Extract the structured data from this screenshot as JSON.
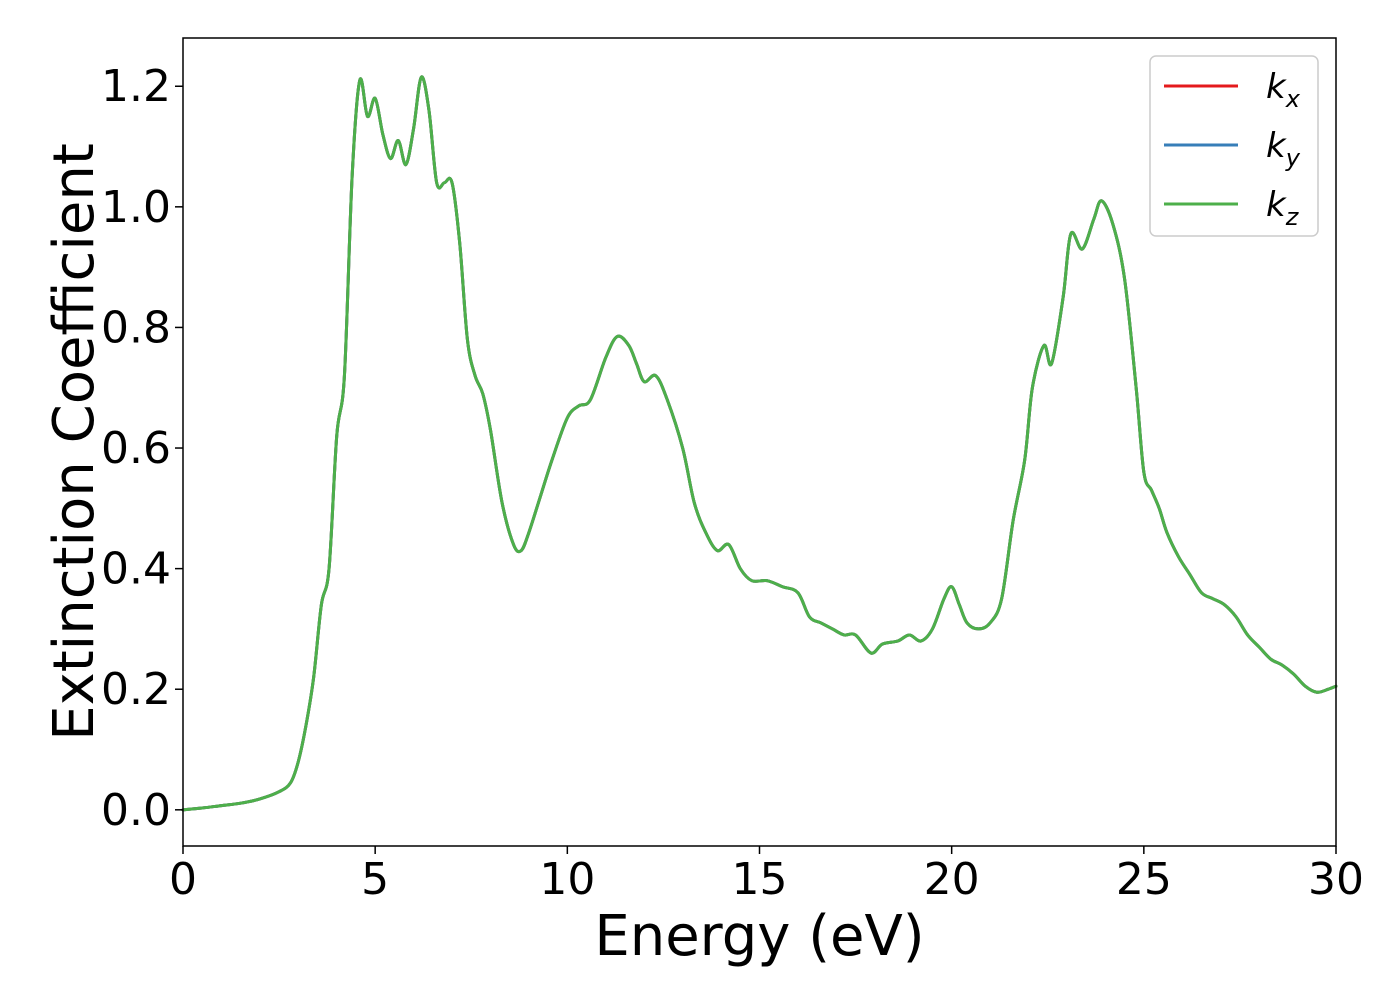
{
  "chart_data": {
    "type": "line",
    "title": "",
    "xlabel": "Energy (eV)",
    "ylabel": "Extinction Coefficient",
    "xlim": [
      0,
      30
    ],
    "ylim": [
      -0.06,
      1.28
    ],
    "xticks": [
      0,
      5,
      10,
      15,
      20,
      25,
      30
    ],
    "xtick_labels": [
      "0",
      "5",
      "10",
      "15",
      "20",
      "25",
      "30"
    ],
    "yticks": [
      0.0,
      0.2,
      0.4,
      0.6,
      0.8,
      1.0,
      1.2
    ],
    "ytick_labels": [
      "0.0",
      "0.2",
      "0.4",
      "0.6",
      "0.8",
      "1.0",
      "1.2"
    ],
    "grid": false,
    "legend_position": "top-right",
    "x": [
      0,
      0.5,
      1,
      1.5,
      2,
      2.5,
      2.8,
      3,
      3.2,
      3.4,
      3.6,
      3.8,
      4,
      4.2,
      4.4,
      4.6,
      4.8,
      5,
      5.2,
      5.4,
      5.6,
      5.8,
      6,
      6.2,
      6.4,
      6.6,
      6.8,
      7,
      7.2,
      7.4,
      7.6,
      7.8,
      8,
      8.3,
      8.6,
      8.8,
      9,
      9.3,
      9.6,
      10,
      10.3,
      10.6,
      11,
      11.3,
      11.6,
      11.8,
      12,
      12.3,
      12.6,
      13,
      13.3,
      13.6,
      13.9,
      14.2,
      14.5,
      14.8,
      15.2,
      15.6,
      16,
      16.3,
      16.6,
      16.9,
      17.2,
      17.5,
      17.9,
      18.2,
      18.6,
      18.9,
      19.2,
      19.5,
      19.8,
      20,
      20.2,
      20.4,
      20.7,
      21,
      21.3,
      21.6,
      21.9,
      22.1,
      22.4,
      22.6,
      22.9,
      23.1,
      23.4,
      23.7,
      23.9,
      24.2,
      24.5,
      24.8,
      25,
      25.2,
      25.4,
      25.6,
      25.9,
      26.2,
      26.5,
      26.8,
      27.1,
      27.4,
      27.7,
      28,
      28.3,
      28.6,
      28.9,
      29.2,
      29.5,
      29.8,
      30
    ],
    "series": [
      {
        "name": "k",
        "name_sub": "x",
        "color": "#e41a1c",
        "values": [
          0.0,
          0.003,
          0.007,
          0.011,
          0.018,
          0.03,
          0.045,
          0.08,
          0.14,
          0.22,
          0.34,
          0.4,
          0.62,
          0.72,
          1.05,
          1.21,
          1.15,
          1.18,
          1.12,
          1.08,
          1.11,
          1.07,
          1.13,
          1.215,
          1.16,
          1.04,
          1.04,
          1.04,
          0.94,
          0.78,
          0.72,
          0.69,
          0.63,
          0.51,
          0.44,
          0.43,
          0.46,
          0.52,
          0.58,
          0.65,
          0.67,
          0.68,
          0.75,
          0.785,
          0.77,
          0.74,
          0.71,
          0.72,
          0.68,
          0.6,
          0.51,
          0.46,
          0.43,
          0.44,
          0.4,
          0.38,
          0.38,
          0.37,
          0.36,
          0.32,
          0.31,
          0.3,
          0.29,
          0.29,
          0.26,
          0.275,
          0.28,
          0.29,
          0.28,
          0.3,
          0.35,
          0.37,
          0.34,
          0.31,
          0.3,
          0.31,
          0.35,
          0.48,
          0.58,
          0.7,
          0.77,
          0.74,
          0.85,
          0.955,
          0.93,
          0.98,
          1.01,
          0.97,
          0.88,
          0.7,
          0.56,
          0.53,
          0.5,
          0.46,
          0.42,
          0.39,
          0.36,
          0.35,
          0.34,
          0.32,
          0.29,
          0.27,
          0.25,
          0.24,
          0.225,
          0.205,
          0.195,
          0.2,
          0.205
        ]
      },
      {
        "name": "k",
        "name_sub": "y",
        "color": "#377eb8",
        "values": [
          0.0,
          0.003,
          0.007,
          0.011,
          0.018,
          0.03,
          0.045,
          0.08,
          0.14,
          0.22,
          0.34,
          0.4,
          0.62,
          0.72,
          1.05,
          1.21,
          1.15,
          1.18,
          1.12,
          1.08,
          1.11,
          1.07,
          1.13,
          1.215,
          1.16,
          1.04,
          1.04,
          1.04,
          0.94,
          0.78,
          0.72,
          0.69,
          0.63,
          0.51,
          0.44,
          0.43,
          0.46,
          0.52,
          0.58,
          0.65,
          0.67,
          0.68,
          0.75,
          0.785,
          0.77,
          0.74,
          0.71,
          0.72,
          0.68,
          0.6,
          0.51,
          0.46,
          0.43,
          0.44,
          0.4,
          0.38,
          0.38,
          0.37,
          0.36,
          0.32,
          0.31,
          0.3,
          0.29,
          0.29,
          0.26,
          0.275,
          0.28,
          0.29,
          0.28,
          0.3,
          0.35,
          0.37,
          0.34,
          0.31,
          0.3,
          0.31,
          0.35,
          0.48,
          0.58,
          0.7,
          0.77,
          0.74,
          0.85,
          0.955,
          0.93,
          0.98,
          1.01,
          0.97,
          0.88,
          0.7,
          0.56,
          0.53,
          0.5,
          0.46,
          0.42,
          0.39,
          0.36,
          0.35,
          0.34,
          0.32,
          0.29,
          0.27,
          0.25,
          0.24,
          0.225,
          0.205,
          0.195,
          0.2,
          0.205
        ]
      },
      {
        "name": "k",
        "name_sub": "z",
        "color": "#4daf4a",
        "values": [
          0.0,
          0.003,
          0.007,
          0.011,
          0.018,
          0.03,
          0.045,
          0.08,
          0.14,
          0.22,
          0.34,
          0.4,
          0.62,
          0.72,
          1.05,
          1.21,
          1.15,
          1.18,
          1.12,
          1.08,
          1.11,
          1.07,
          1.13,
          1.215,
          1.16,
          1.04,
          1.04,
          1.04,
          0.94,
          0.78,
          0.72,
          0.69,
          0.63,
          0.51,
          0.44,
          0.43,
          0.46,
          0.52,
          0.58,
          0.65,
          0.67,
          0.68,
          0.75,
          0.785,
          0.77,
          0.74,
          0.71,
          0.72,
          0.68,
          0.6,
          0.51,
          0.46,
          0.43,
          0.44,
          0.4,
          0.38,
          0.38,
          0.37,
          0.36,
          0.32,
          0.31,
          0.3,
          0.29,
          0.29,
          0.26,
          0.275,
          0.28,
          0.29,
          0.28,
          0.3,
          0.35,
          0.37,
          0.34,
          0.31,
          0.3,
          0.31,
          0.35,
          0.48,
          0.58,
          0.7,
          0.77,
          0.74,
          0.85,
          0.955,
          0.93,
          0.98,
          1.01,
          0.97,
          0.88,
          0.7,
          0.56,
          0.53,
          0.5,
          0.46,
          0.42,
          0.39,
          0.36,
          0.35,
          0.34,
          0.32,
          0.29,
          0.27,
          0.25,
          0.24,
          0.225,
          0.205,
          0.195,
          0.2,
          0.205
        ]
      }
    ]
  }
}
